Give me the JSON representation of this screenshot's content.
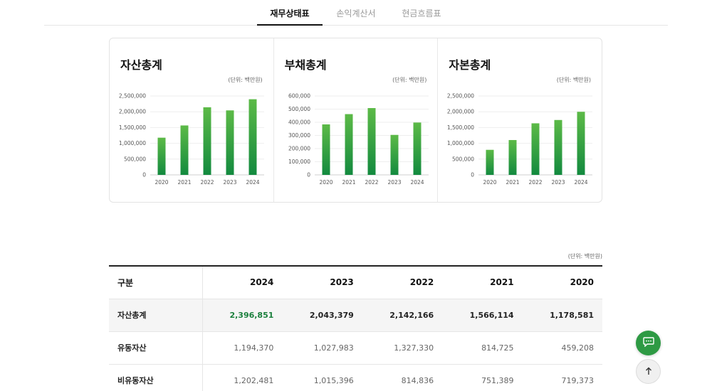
{
  "tabs": [
    {
      "label": "재무상태표",
      "active": true
    },
    {
      "label": "손익계산서",
      "active": false
    },
    {
      "label": "현금흐름표",
      "active": false
    }
  ],
  "cards": [
    {
      "title": "자산총계",
      "unit": "(단위: 백만원)"
    },
    {
      "title": "부채총계",
      "unit": "(단위: 백만원)"
    },
    {
      "title": "자본총계",
      "unit": "(단위: 백만원)"
    }
  ],
  "chart_data": [
    {
      "type": "bar",
      "title": "자산총계",
      "categories": [
        "2020",
        "2021",
        "2022",
        "2023",
        "2024"
      ],
      "values": [
        1178581,
        1566114,
        2142166,
        2043379,
        2396851
      ],
      "ylim": [
        0,
        2500000
      ],
      "yticks": [
        "0",
        "500,000",
        "1,000,000",
        "1,500,000",
        "2,000,000",
        "2,500,000"
      ],
      "ytick_values": [
        0,
        500000,
        1000000,
        1500000,
        2000000,
        2500000
      ],
      "color": "#2e9a44"
    },
    {
      "type": "bar",
      "title": "부채총계",
      "categories": [
        "2020",
        "2021",
        "2022",
        "2023",
        "2024"
      ],
      "values": [
        384000,
        462000,
        508000,
        304000,
        398000
      ],
      "ylim": [
        0,
        600000
      ],
      "yticks": [
        "0",
        "100,000",
        "200,000",
        "300,000",
        "400,000",
        "500,000",
        "600,000"
      ],
      "ytick_values": [
        0,
        100000,
        200000,
        300000,
        400000,
        500000,
        600000
      ],
      "color": "#2e9a44"
    },
    {
      "type": "bar",
      "title": "자본총계",
      "categories": [
        "2020",
        "2021",
        "2022",
        "2023",
        "2024"
      ],
      "values": [
        794000,
        1104000,
        1634000,
        1739000,
        1999000
      ],
      "ylim": [
        0,
        2500000
      ],
      "yticks": [
        "0",
        "500,000",
        "1,000,000",
        "1,500,000",
        "2,000,000",
        "2,500,000"
      ],
      "ytick_values": [
        0,
        500000,
        1000000,
        1500000,
        2000000,
        2500000
      ],
      "color": "#2e9a44"
    }
  ],
  "table": {
    "unit": "(단위: 백만원)",
    "headers": [
      "구분",
      "2024",
      "2023",
      "2022",
      "2021",
      "2020"
    ],
    "rows": [
      {
        "label": "자산총계",
        "values": [
          "2,396,851",
          "2,043,379",
          "2,142,166",
          "1,566,114",
          "1,178,581"
        ],
        "highlight": true
      },
      {
        "label": "유동자산",
        "values": [
          "1,194,370",
          "1,027,983",
          "1,327,330",
          "814,725",
          "459,208"
        ],
        "highlight": false
      },
      {
        "label": "비유동자산",
        "values": [
          "1,202,481",
          "1,015,396",
          "814,836",
          "751,389",
          "719,373"
        ],
        "highlight": false
      }
    ]
  },
  "accent_color": "#1a7f3c",
  "buttons": {
    "chat_icon": "chat-bubble-icon",
    "top_icon": "arrow-up-icon"
  }
}
